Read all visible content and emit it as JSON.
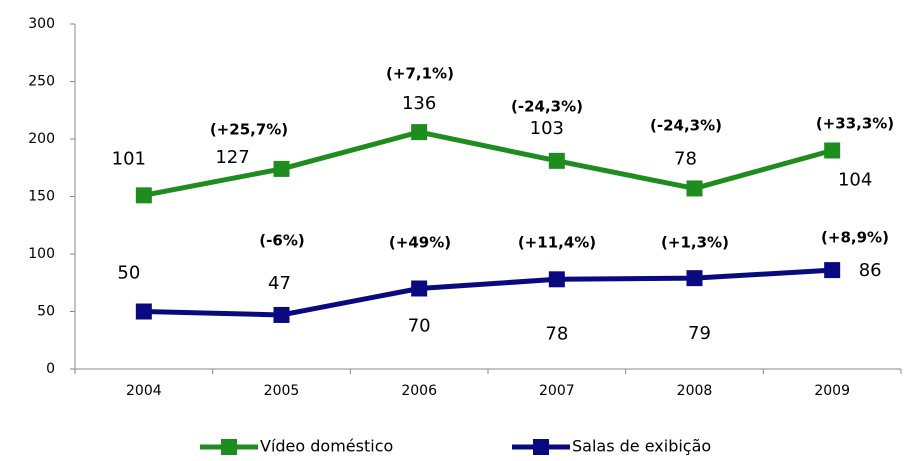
{
  "chart_data": {
    "type": "line",
    "stacked": true,
    "categories": [
      "2004",
      "2005",
      "2006",
      "2007",
      "2008",
      "2009"
    ],
    "series": [
      {
        "name": "Salas de exibição",
        "color": "#0a0a80",
        "values": [
          50,
          47,
          70,
          78,
          79,
          86
        ],
        "annotations": [
          null,
          "(-6%)",
          "(+49%)",
          "(+11,4%)",
          "(+1,3%)",
          "(+8,9%)"
        ]
      },
      {
        "name": "Vídeo doméstico",
        "color": "#1f8c1f",
        "values": [
          101,
          127,
          136,
          103,
          78,
          104
        ],
        "annotations": [
          null,
          "(+25,7%)",
          "(+7,1%)",
          "(-24,3%)",
          "(-24,3%)",
          "(+33,3%)"
        ]
      }
    ],
    "ylim": [
      0,
      300
    ],
    "yticks": [
      0,
      50,
      100,
      150,
      200,
      250,
      300
    ],
    "legend": "bottom",
    "legend_order": [
      1,
      0
    ]
  }
}
